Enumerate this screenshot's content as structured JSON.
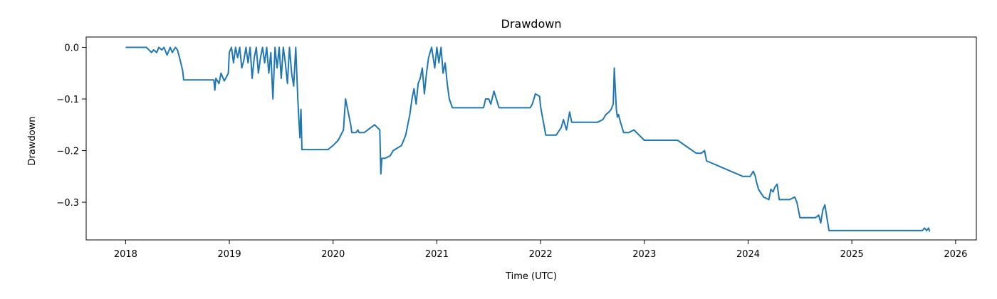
{
  "chart_data": {
    "type": "line",
    "title": "Drawdown",
    "xlabel": "Time (UTC)",
    "ylabel": "Drawdown",
    "xlim": [
      2017.62,
      2026.2
    ],
    "ylim": [
      -0.373,
      0.02
    ],
    "x_ticks": [
      2018,
      2019,
      2020,
      2021,
      2022,
      2023,
      2024,
      2025,
      2026
    ],
    "x_tick_labels": [
      "2018",
      "2019",
      "2020",
      "2021",
      "2022",
      "2023",
      "2024",
      "2025",
      "2026"
    ],
    "y_ticks": [
      0.0,
      -0.1,
      -0.2,
      -0.3
    ],
    "y_tick_labels": [
      "0.0",
      "−0.1",
      "−0.2",
      "−0.3"
    ],
    "grid": false,
    "color": "#1f77b4",
    "series": [
      {
        "x": [
          2018.0,
          2018.2,
          2018.25,
          2018.27,
          2018.3,
          2018.32,
          2018.35,
          2018.37,
          2018.4,
          2018.43,
          2018.45,
          2018.48,
          2018.5,
          2018.52,
          2018.55,
          2018.56,
          2018.57,
          2018.58,
          2018.6,
          2018.85,
          2018.86,
          2018.87,
          2018.9,
          2018.92,
          2018.95,
          2018.97,
          2018.99,
          2019.0,
          2019.02,
          2019.04,
          2019.06,
          2019.08,
          2019.1,
          2019.12,
          2019.14,
          2019.16,
          2019.18,
          2019.2,
          2019.22,
          2019.24,
          2019.26,
          2019.28,
          2019.3,
          2019.32,
          2019.34,
          2019.36,
          2019.38,
          2019.4,
          2019.42,
          2019.44,
          2019.46,
          2019.48,
          2019.5,
          2019.52,
          2019.54,
          2019.56,
          2019.58,
          2019.6,
          2019.62,
          2019.64,
          2019.66,
          2019.67,
          2019.68,
          2019.69,
          2019.7,
          2019.72,
          2019.74,
          2019.75,
          2019.95,
          2020.0,
          2020.05,
          2020.1,
          2020.12,
          2020.15,
          2020.17,
          2020.18,
          2020.19,
          2020.2,
          2020.22,
          2020.24,
          2020.25,
          2020.3,
          2020.4,
          2020.45,
          2020.46,
          2020.47,
          2020.48,
          2020.49,
          2020.5,
          2020.55,
          2020.58,
          2020.62,
          2020.66,
          2020.7,
          2020.74,
          2020.76,
          2020.78,
          2020.8,
          2020.82,
          2020.84,
          2020.86,
          2020.88,
          2020.9,
          2020.92,
          2020.95,
          2020.98,
          2021.0,
          2021.02,
          2021.04,
          2021.06,
          2021.08,
          2021.1,
          2021.12,
          2021.15,
          2021.45,
          2021.47,
          2021.5,
          2021.52,
          2021.55,
          2021.6,
          2021.62,
          2021.65,
          2021.9,
          2021.92,
          2021.95,
          2021.99,
          2022.0,
          2022.05,
          2022.1,
          2022.15,
          2022.2,
          2022.22,
          2022.25,
          2022.28,
          2022.3,
          2022.45,
          2022.5,
          2022.55,
          2022.6,
          2022.63,
          2022.66,
          2022.68,
          2022.7,
          2022.71,
          2022.72,
          2022.73,
          2022.74,
          2022.75,
          2022.77,
          2022.8,
          2022.85,
          2022.9,
          2022.95,
          2023.0,
          2023.3,
          2023.32,
          2023.5,
          2023.55,
          2023.58,
          2023.6,
          2023.95,
          2024.0,
          2024.02,
          2024.05,
          2024.07,
          2024.08,
          2024.1,
          2024.15,
          2024.2,
          2024.22,
          2024.24,
          2024.26,
          2024.28,
          2024.3,
          2024.35,
          2024.4,
          2024.45,
          2024.47,
          2024.5,
          2024.65,
          2024.68,
          2024.7,
          2024.72,
          2024.74,
          2024.76,
          2024.78,
          2024.8,
          2025.65,
          2025.68,
          2025.7,
          2025.72,
          2025.74,
          2025.75
        ],
        "y": [
          0.0,
          0.0,
          -0.01,
          -0.005,
          -0.01,
          0.0,
          -0.005,
          0.0,
          -0.015,
          0.0,
          -0.01,
          0.0,
          -0.005,
          -0.02,
          -0.045,
          -0.063,
          -0.063,
          -0.063,
          -0.063,
          -0.063,
          -0.083,
          -0.06,
          -0.07,
          -0.05,
          -0.065,
          -0.058,
          -0.05,
          -0.01,
          0.0,
          -0.03,
          0.0,
          -0.02,
          0.0,
          -0.04,
          -0.025,
          0.0,
          -0.03,
          0.0,
          -0.06,
          -0.02,
          0.0,
          -0.05,
          -0.02,
          0.0,
          -0.03,
          0.0,
          -0.05,
          -0.01,
          -0.1,
          0.0,
          -0.04,
          0.0,
          -0.06,
          0.0,
          -0.03,
          -0.07,
          0.0,
          -0.05,
          -0.075,
          0.0,
          -0.1,
          -0.14,
          -0.175,
          -0.12,
          -0.198,
          -0.198,
          -0.198,
          -0.198,
          -0.198,
          -0.19,
          -0.18,
          -0.16,
          -0.1,
          -0.13,
          -0.15,
          -0.165,
          -0.165,
          -0.165,
          -0.165,
          -0.16,
          -0.165,
          -0.165,
          -0.15,
          -0.16,
          -0.245,
          -0.215,
          -0.215,
          -0.215,
          -0.215,
          -0.21,
          -0.2,
          -0.195,
          -0.19,
          -0.17,
          -0.13,
          -0.1,
          -0.08,
          -0.11,
          -0.07,
          -0.06,
          -0.04,
          -0.09,
          -0.05,
          -0.02,
          0.0,
          -0.04,
          0.0,
          -0.03,
          0.0,
          -0.05,
          -0.03,
          -0.07,
          -0.1,
          -0.117,
          -0.117,
          -0.1,
          -0.1,
          -0.11,
          -0.085,
          -0.117,
          -0.117,
          -0.117,
          -0.117,
          -0.11,
          -0.09,
          -0.095,
          -0.115,
          -0.17,
          -0.17,
          -0.17,
          -0.155,
          -0.14,
          -0.16,
          -0.125,
          -0.145,
          -0.145,
          -0.145,
          -0.145,
          -0.14,
          -0.13,
          -0.125,
          -0.12,
          -0.11,
          -0.04,
          -0.08,
          -0.12,
          -0.135,
          -0.13,
          -0.145,
          -0.165,
          -0.165,
          -0.16,
          -0.17,
          -0.18,
          -0.18,
          -0.18,
          -0.205,
          -0.205,
          -0.2,
          -0.22,
          -0.25,
          -0.25,
          -0.25,
          -0.24,
          -0.25,
          -0.26,
          -0.275,
          -0.29,
          -0.295,
          -0.275,
          -0.28,
          -0.27,
          -0.265,
          -0.295,
          -0.295,
          -0.295,
          -0.29,
          -0.3,
          -0.33,
          -0.33,
          -0.325,
          -0.34,
          -0.315,
          -0.305,
          -0.33,
          -0.355,
          -0.355,
          -0.355,
          -0.355,
          -0.35,
          -0.355,
          -0.35,
          -0.357
        ]
      }
    ]
  }
}
